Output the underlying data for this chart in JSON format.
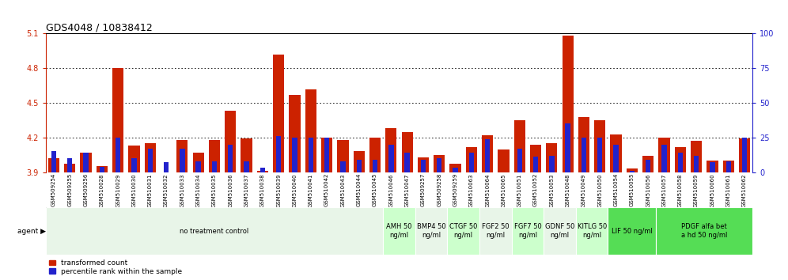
{
  "title": "GDS4048 / 10838412",
  "samples": [
    "GSM509254",
    "GSM509255",
    "GSM509256",
    "GSM510028",
    "GSM510029",
    "GSM510030",
    "GSM510031",
    "GSM510032",
    "GSM510033",
    "GSM510034",
    "GSM510035",
    "GSM510036",
    "GSM510037",
    "GSM510038",
    "GSM510039",
    "GSM510040",
    "GSM510041",
    "GSM510042",
    "GSM510043",
    "GSM510044",
    "GSM510045",
    "GSM510046",
    "GSM510047",
    "GSM509257",
    "GSM509258",
    "GSM509259",
    "GSM510063",
    "GSM510064",
    "GSM510065",
    "GSM510051",
    "GSM510052",
    "GSM510053",
    "GSM510048",
    "GSM510049",
    "GSM510050",
    "GSM510054",
    "GSM510055",
    "GSM510056",
    "GSM510057",
    "GSM510058",
    "GSM510059",
    "GSM510060",
    "GSM510061",
    "GSM510062"
  ],
  "red_values": [
    4.02,
    3.97,
    4.07,
    3.95,
    4.8,
    4.13,
    4.15,
    3.9,
    4.18,
    4.07,
    4.18,
    4.43,
    4.19,
    3.91,
    4.92,
    4.57,
    4.62,
    4.2,
    4.18,
    4.08,
    4.2,
    4.28,
    4.25,
    4.03,
    4.05,
    3.97,
    4.12,
    4.22,
    4.1,
    4.35,
    4.14,
    4.15,
    5.08,
    4.38,
    4.35,
    4.23,
    3.93,
    4.04,
    4.2,
    4.12,
    4.17,
    4.0,
    4.0,
    4.19
  ],
  "percentile_values": [
    15,
    10,
    14,
    4,
    25,
    10,
    17,
    7,
    17,
    8,
    8,
    20,
    8,
    3,
    26,
    25,
    25,
    25,
    8,
    9,
    9,
    20,
    14,
    9,
    10,
    3,
    14,
    24,
    0,
    17,
    11,
    12,
    35,
    25,
    25,
    20,
    1,
    9,
    20,
    14,
    12,
    7,
    8,
    25
  ],
  "agent_groups": [
    {
      "label": "no treatment control",
      "start": 0,
      "end": 21,
      "color": "#e8f5e8",
      "bright": false
    },
    {
      "label": "AMH 50\nng/ml",
      "start": 21,
      "end": 23,
      "color": "#ccffcc",
      "bright": false
    },
    {
      "label": "BMP4 50\nng/ml",
      "start": 23,
      "end": 25,
      "color": "#e8f5e8",
      "bright": false
    },
    {
      "label": "CTGF 50\nng/ml",
      "start": 25,
      "end": 27,
      "color": "#ccffcc",
      "bright": false
    },
    {
      "label": "FGF2 50\nng/ml",
      "start": 27,
      "end": 29,
      "color": "#e8f5e8",
      "bright": false
    },
    {
      "label": "FGF7 50\nng/ml",
      "start": 29,
      "end": 31,
      "color": "#ccffcc",
      "bright": false
    },
    {
      "label": "GDNF 50\nng/ml",
      "start": 31,
      "end": 33,
      "color": "#e8f5e8",
      "bright": false
    },
    {
      "label": "KITLG 50\nng/ml",
      "start": 33,
      "end": 35,
      "color": "#ccffcc",
      "bright": false
    },
    {
      "label": "LIF 50 ng/ml",
      "start": 35,
      "end": 38,
      "color": "#55dd55",
      "bright": true
    },
    {
      "label": "PDGF alfa bet\na hd 50 ng/ml",
      "start": 38,
      "end": 44,
      "color": "#55dd55",
      "bright": true
    }
  ],
  "ylim_left": [
    3.9,
    5.1
  ],
  "ylim_right": [
    0,
    100
  ],
  "yticks_left": [
    3.9,
    4.2,
    4.5,
    4.8,
    5.1
  ],
  "yticks_right": [
    0,
    25,
    50,
    75,
    100
  ],
  "red_color": "#cc2200",
  "blue_color": "#2222cc",
  "bar_width": 0.7,
  "title_fontsize": 9,
  "tick_fontsize": 7,
  "sample_fontsize": 5,
  "agent_fontsize": 6
}
